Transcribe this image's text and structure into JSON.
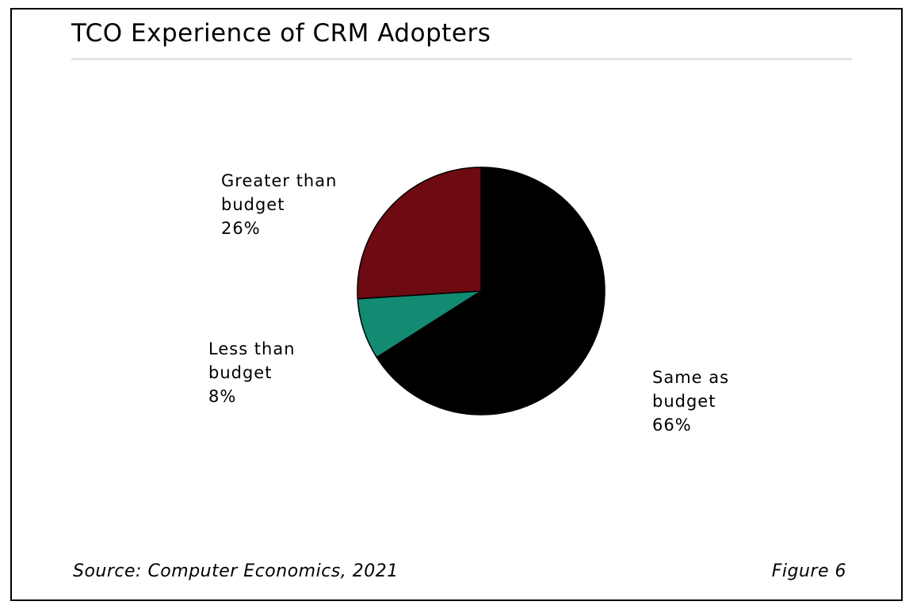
{
  "chart_data": {
    "type": "pie",
    "title": "TCO Experience of CRM Adopters",
    "slices": [
      {
        "label": [
          "Same as",
          "budget"
        ],
        "value": 66,
        "display": "66%",
        "color": "#000000"
      },
      {
        "label": [
          "Less than",
          "budget"
        ],
        "value": 8,
        "display": "8%",
        "color": "#138a72"
      },
      {
        "label": [
          "Greater than",
          "budget"
        ],
        "value": 26,
        "display": "26%",
        "color": "#6e0a12"
      }
    ],
    "start_angle": "top, clockwise",
    "legend": "none (direct labels)",
    "source": "Source: Computer Economics, 2021",
    "figure": "Figure 6"
  }
}
